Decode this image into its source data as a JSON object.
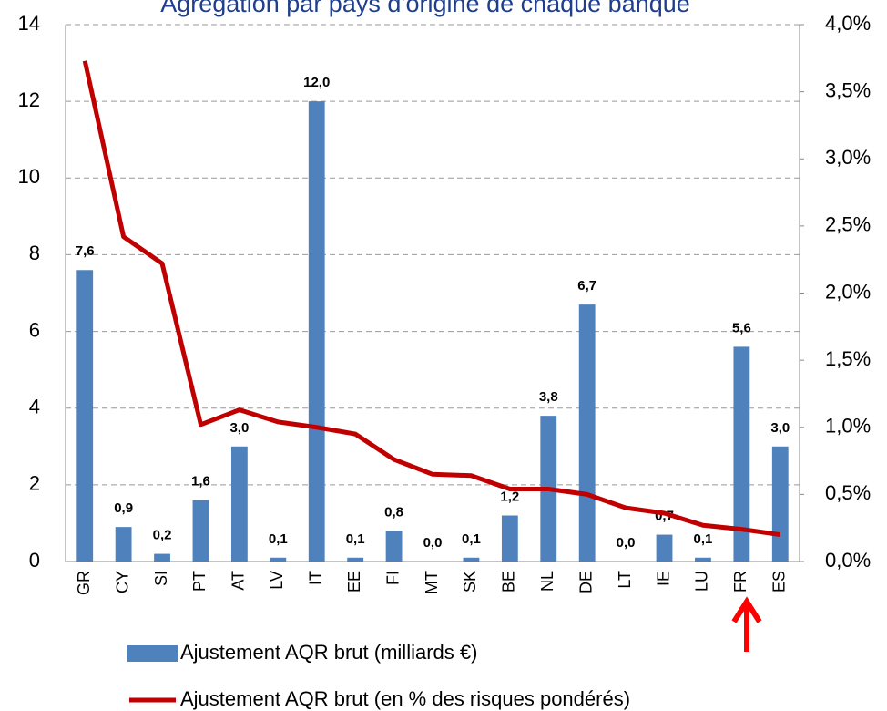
{
  "chart_data": {
    "type": "bar-line",
    "title": "Agrégation par pays d'origine de chaque banque",
    "categories": [
      "GR",
      "CY",
      "SI",
      "PT",
      "AT",
      "LV",
      "IT",
      "EE",
      "FI",
      "MT",
      "SK",
      "BE",
      "NL",
      "DE",
      "LT",
      "IE",
      "LU",
      "FR",
      "ES"
    ],
    "series": [
      {
        "name": "Ajustement AQR brut (milliards €)",
        "type": "bar",
        "color": "#4f81bd",
        "values": [
          7.6,
          0.9,
          0.2,
          1.6,
          3.0,
          0.1,
          12.0,
          0.1,
          0.8,
          0.0,
          0.1,
          1.2,
          3.8,
          6.7,
          0.0,
          0.7,
          0.1,
          5.6,
          3.0
        ],
        "value_labels": [
          "7,6",
          "0,9",
          "0,2",
          "1,6",
          "3,0",
          "0,1",
          "12,0",
          "0,1",
          "0,8",
          "0,0",
          "0,1",
          "1,2",
          "3,8",
          "6,7",
          "0,0",
          "0,7",
          "0,1",
          "5,6",
          "3,0"
        ]
      },
      {
        "name": "Ajustement AQR brut (en % des risques pondérés)",
        "type": "line",
        "axis": "y2",
        "color": "#c00000",
        "values": [
          3.73,
          2.42,
          2.22,
          1.02,
          1.13,
          1.04,
          1.0,
          0.95,
          0.76,
          0.65,
          0.64,
          0.54,
          0.54,
          0.5,
          0.4,
          0.36,
          0.27,
          0.24,
          0.2
        ]
      }
    ],
    "ylim": [
      0,
      14
    ],
    "yticks": [
      0,
      2,
      4,
      6,
      8,
      10,
      12,
      14
    ],
    "y2lim": [
      0,
      4
    ],
    "y2ticks": [
      {
        "value": 0,
        "label": "0,0%"
      },
      {
        "value": 0.5,
        "label": "0,5%"
      },
      {
        "value": 1,
        "label": "1,0%"
      },
      {
        "value": 1.5,
        "label": "1,5%"
      },
      {
        "value": 2,
        "label": "2,0%"
      },
      {
        "value": 2.5,
        "label": "2,5%"
      },
      {
        "value": 3,
        "label": "3,0%"
      },
      {
        "value": 3.5,
        "label": "3,5%"
      },
      {
        "value": 4,
        "label": "4,0%"
      }
    ],
    "grid": true
  }
}
